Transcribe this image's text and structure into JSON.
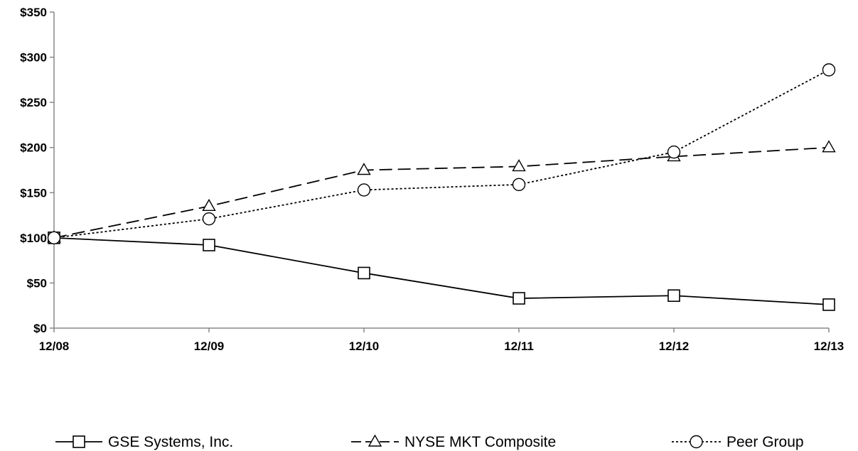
{
  "chart_data": {
    "type": "line",
    "title": "",
    "xlabel": "",
    "ylabel": "",
    "categories": [
      "12/08",
      "12/09",
      "12/10",
      "12/11",
      "12/12",
      "12/13"
    ],
    "y_tick_labels": [
      "$0",
      "$50",
      "$100",
      "$150",
      "$200",
      "$250",
      "$300",
      "$350"
    ],
    "ylim": [
      0,
      350
    ],
    "grid": false,
    "legend_position": "bottom",
    "series": [
      {
        "name": "GSE Systems, Inc.",
        "values": [
          100,
          92,
          61,
          33,
          36,
          26
        ],
        "marker": "square",
        "dash": "solid",
        "color": "#000000"
      },
      {
        "name": "NYSE MKT Composite",
        "values": [
          100,
          135,
          175,
          179,
          190,
          200
        ],
        "marker": "triangle",
        "dash": "dashed",
        "color": "#000000"
      },
      {
        "name": "Peer Group",
        "values": [
          100,
          121,
          153,
          159,
          195,
          286
        ],
        "marker": "circle",
        "dash": "dotted",
        "color": "#000000"
      }
    ]
  }
}
